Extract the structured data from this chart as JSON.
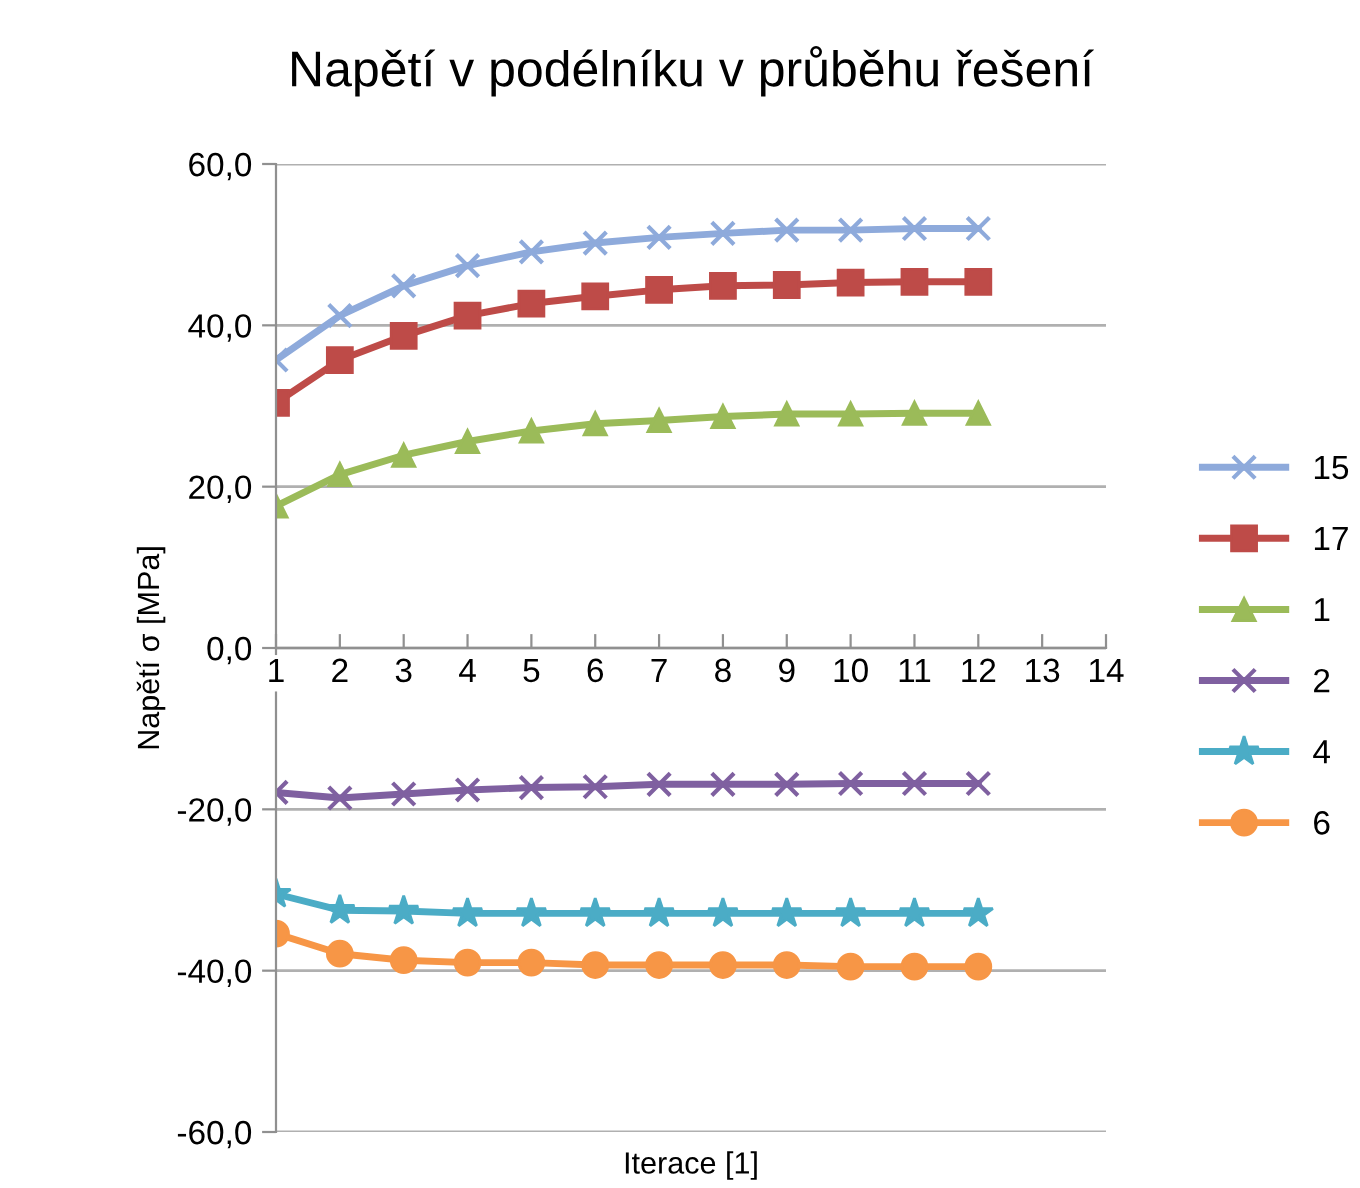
{
  "chart_data": {
    "type": "line",
    "title": "Napětí v podélníku v průběhu řešení",
    "xlabel": "Iterace [1]",
    "ylabel": "Napětí σ [MPa]",
    "x": [
      1,
      2,
      3,
      4,
      5,
      6,
      7,
      8,
      9,
      10,
      11,
      12
    ],
    "xlim": [
      1,
      14
    ],
    "xticks": [
      1,
      2,
      3,
      4,
      5,
      6,
      7,
      8,
      9,
      10,
      11,
      12,
      13,
      14
    ],
    "ylim": [
      -60,
      60
    ],
    "yticks": [
      {
        "value": -60,
        "label": "-60,0"
      },
      {
        "value": -40,
        "label": "-40,0"
      },
      {
        "value": -20,
        "label": "-20,0"
      },
      {
        "value": 0,
        "label": "0,0"
      },
      {
        "value": 20,
        "label": "20,0"
      },
      {
        "value": 40,
        "label": "40,0"
      },
      {
        "value": 60,
        "label": "60,0"
      }
    ],
    "grid": "y",
    "legend": "right",
    "line_style": "solid",
    "series": [
      {
        "name": "15",
        "color": "#8eaadb",
        "marker": "cross",
        "values": [
          35.7,
          41.2,
          44.9,
          47.4,
          49.1,
          50.2,
          50.9,
          51.4,
          51.8,
          51.8,
          52.0,
          52.0
        ]
      },
      {
        "name": "17",
        "color": "#be4b48",
        "marker": "square",
        "values": [
          30.4,
          35.7,
          38.7,
          41.2,
          42.7,
          43.6,
          44.4,
          44.9,
          45.0,
          45.3,
          45.4,
          45.4
        ]
      },
      {
        "name": "1",
        "color": "#9bbb59",
        "marker": "triangle",
        "values": [
          17.6,
          21.5,
          23.9,
          25.6,
          26.9,
          27.8,
          28.2,
          28.7,
          29.0,
          29.0,
          29.1,
          29.1
        ]
      },
      {
        "name": "2",
        "color": "#7f60a0",
        "marker": "cross",
        "values": [
          -17.9,
          -18.6,
          -18.1,
          -17.6,
          -17.3,
          -17.2,
          -16.9,
          -16.9,
          -16.9,
          -16.8,
          -16.8,
          -16.8
        ]
      },
      {
        "name": "4",
        "color": "#4bacc6",
        "marker": "star",
        "values": [
          -30.5,
          -32.5,
          -32.6,
          -32.9,
          -32.9,
          -32.9,
          -32.9,
          -32.9,
          -32.9,
          -32.9,
          -32.9,
          -32.9
        ]
      },
      {
        "name": "6",
        "color": "#f79646",
        "marker": "circle",
        "values": [
          -35.4,
          -37.9,
          -38.7,
          -39.0,
          -39.0,
          -39.3,
          -39.3,
          -39.3,
          -39.3,
          -39.5,
          -39.5,
          -39.5
        ]
      }
    ]
  }
}
